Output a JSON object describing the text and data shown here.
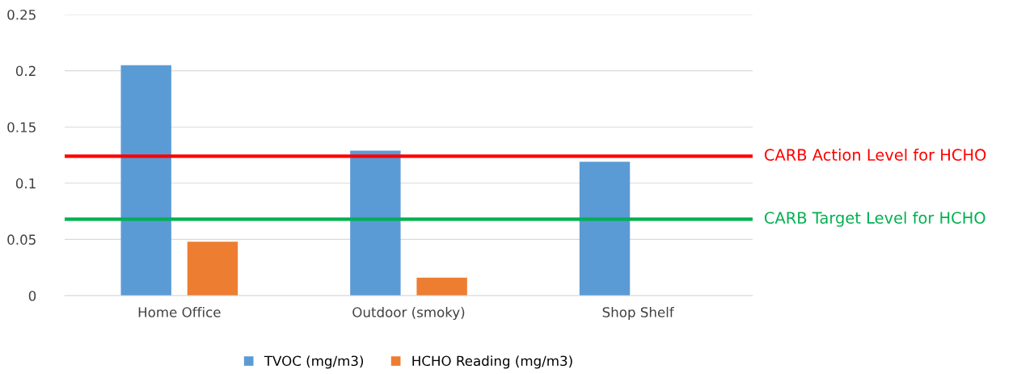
{
  "chart_data": {
    "type": "bar",
    "categories": [
      "Home Office",
      "Outdoor (smoky)",
      "Shop Shelf"
    ],
    "series": [
      {
        "name": "TVOC (mg/m3)",
        "color": "#5b9bd5",
        "values": [
          0.205,
          0.129,
          0.119
        ]
      },
      {
        "name": "HCHO Reading (mg/m3)",
        "color": "#ed7d31",
        "values": [
          0.048,
          0.016,
          null
        ]
      }
    ],
    "ylim": [
      0,
      0.25
    ],
    "yticks": [
      0,
      0.05,
      0.1,
      0.15,
      0.2,
      0.25
    ],
    "ref_lines": [
      {
        "axis": "y",
        "value": 0.124,
        "label": "CARB Action Level for HCHO",
        "color": "#ff0000",
        "line_style": "solid"
      },
      {
        "axis": "y",
        "value": 0.068,
        "label": "CARB Target Level for HCHO",
        "color": "#00b050",
        "line_style": "solid"
      }
    ],
    "grid": "y",
    "legend": "bottom"
  }
}
